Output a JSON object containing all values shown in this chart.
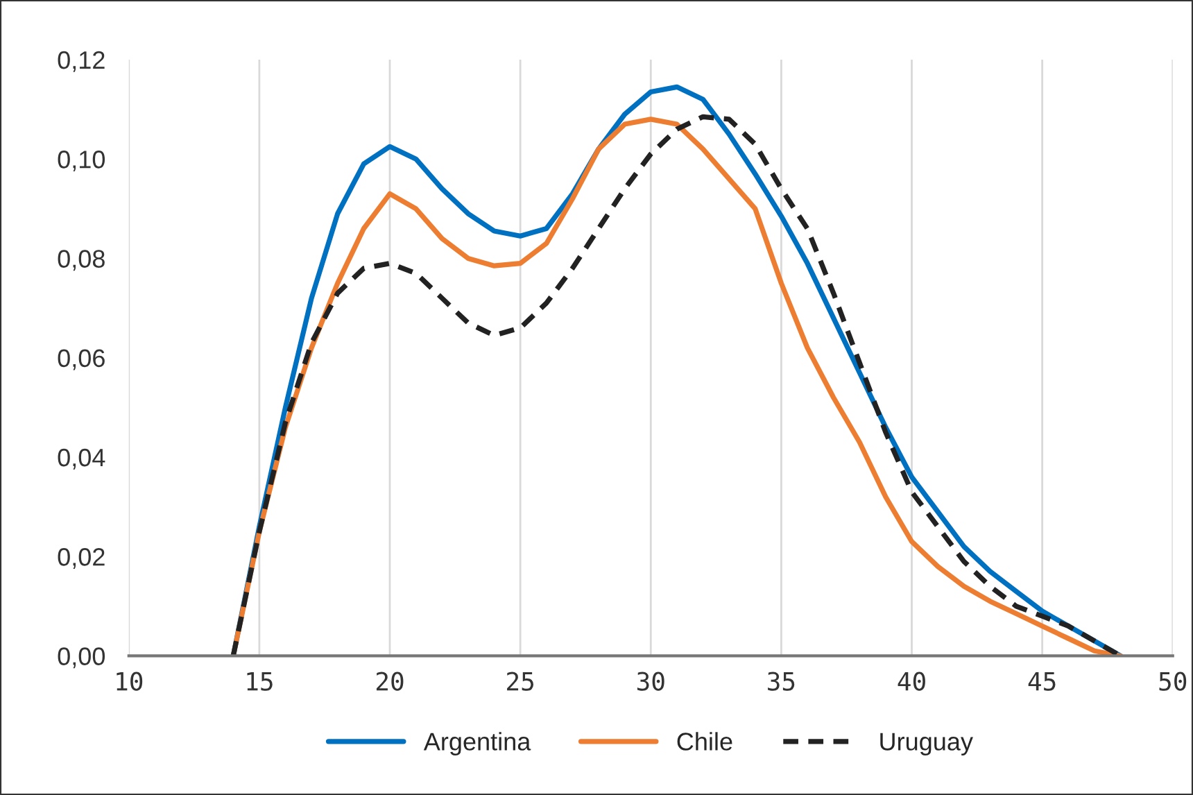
{
  "chart_data": {
    "type": "line",
    "x": [
      14,
      15,
      16,
      17,
      18,
      19,
      20,
      21,
      22,
      23,
      24,
      25,
      26,
      27,
      28,
      29,
      30,
      31,
      32,
      33,
      34,
      35,
      36,
      37,
      38,
      39,
      40,
      41,
      42,
      43,
      44,
      45,
      46,
      47,
      48
    ],
    "series": [
      {
        "name": "Argentina",
        "color": "#0070c0",
        "line_style": "solid",
        "values": [
          0,
          0.026,
          0.05,
          0.072,
          0.089,
          0.099,
          0.1025,
          0.1,
          0.094,
          0.089,
          0.0855,
          0.0845,
          0.086,
          0.093,
          0.102,
          0.109,
          0.1135,
          0.1145,
          0.112,
          0.105,
          0.097,
          0.0885,
          0.079,
          0.068,
          0.057,
          0.046,
          0.036,
          0.029,
          0.022,
          0.017,
          0.013,
          0.009,
          0.006,
          0.003,
          0
        ]
      },
      {
        "name": "Chile",
        "color": "#ed7d31",
        "line_style": "solid",
        "values": [
          0,
          0.025,
          0.046,
          0.062,
          0.075,
          0.086,
          0.093,
          0.09,
          0.084,
          0.08,
          0.0785,
          0.079,
          0.083,
          0.092,
          0.102,
          0.107,
          0.108,
          0.107,
          0.102,
          0.096,
          0.09,
          0.075,
          0.062,
          0.052,
          0.043,
          0.032,
          0.023,
          0.018,
          0.014,
          0.011,
          0.0085,
          0.006,
          0.0035,
          0.001,
          0
        ]
      },
      {
        "name": "Uruguay",
        "color": "#222222",
        "line_style": "dashed",
        "values": [
          0,
          0.025,
          0.047,
          0.063,
          0.073,
          0.078,
          0.079,
          0.077,
          0.072,
          0.067,
          0.0645,
          0.066,
          0.071,
          0.078,
          0.086,
          0.094,
          0.101,
          0.106,
          0.1085,
          0.108,
          0.103,
          0.094,
          0.086,
          0.073,
          0.059,
          0.045,
          0.033,
          0.026,
          0.019,
          0.014,
          0.01,
          0.008,
          0.006,
          0.003,
          0
        ]
      }
    ],
    "xlim": [
      10,
      50
    ],
    "xticks": [
      10,
      15,
      20,
      25,
      30,
      35,
      40,
      45,
      50
    ],
    "ylim": [
      0,
      0.12
    ],
    "yticks": [
      {
        "value": 0,
        "label": "0,00"
      },
      {
        "value": 0.02,
        "label": "0,02"
      },
      {
        "value": 0.04,
        "label": "0,04"
      },
      {
        "value": 0.06,
        "label": "0,06"
      },
      {
        "value": 0.08,
        "label": "0,08"
      },
      {
        "value": 0.1,
        "label": "0,10"
      },
      {
        "value": 0.12,
        "label": "0,12"
      }
    ],
    "grid": "x",
    "legend": "bottom",
    "marker": "none"
  }
}
